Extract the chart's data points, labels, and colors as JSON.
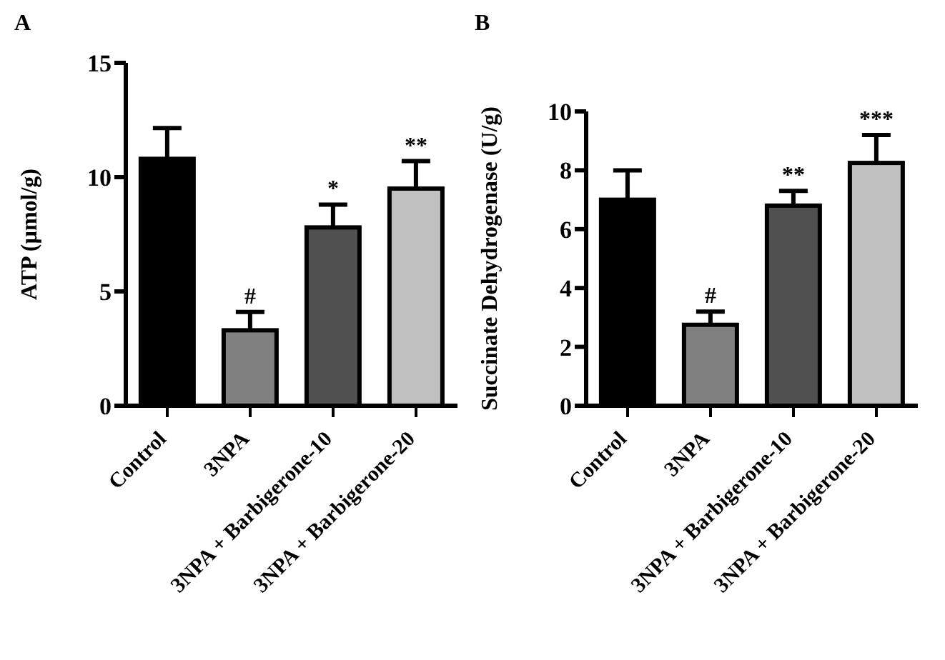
{
  "chart_data": [
    {
      "type": "bar",
      "title": "A",
      "ylabel": "ATP (µmol/g)",
      "categories": [
        "Control",
        "3NPA",
        "3NPA + Barbigerone-10",
        "3NPA + Barbigerone-20"
      ],
      "values": [
        10.8,
        3.3,
        7.8,
        9.5
      ],
      "errors": [
        1.35,
        0.8,
        1.0,
        1.2
      ],
      "colors": [
        "#000000",
        "#808080",
        "#505050",
        "#c0c0c0"
      ],
      "ylim": [
        0,
        15
      ],
      "yticks": [
        0,
        5,
        10,
        15
      ],
      "annotations": [
        {
          "text": "#",
          "x": "3NPA",
          "y": 4.1
        },
        {
          "text": "*",
          "x": "3NPA + Barbigerone-10",
          "y": 8.8
        },
        {
          "text": "**",
          "x": "3NPA + Barbigerone-20",
          "y": 10.7
        }
      ]
    },
    {
      "type": "bar",
      "title": "B",
      "ylabel": "Succinate Dehydrogenase (U/g)",
      "categories": [
        "Control",
        "3NPA",
        "3NPA + Barbigerone-10",
        "3NPA + Barbigerone-20"
      ],
      "values": [
        7.0,
        2.75,
        6.8,
        8.25
      ],
      "errors": [
        1.0,
        0.45,
        0.5,
        0.95
      ],
      "colors": [
        "#000000",
        "#808080",
        "#505050",
        "#c0c0c0"
      ],
      "ylim": [
        0,
        10
      ],
      "yticks": [
        0,
        2,
        4,
        6,
        8,
        10
      ],
      "annotations": [
        {
          "text": "#",
          "x": "3NPA",
          "y": 3.2
        },
        {
          "text": "**",
          "x": "3NPA + Barbigerone-10",
          "y": 7.3
        },
        {
          "text": "***",
          "x": "3NPA + Barbigerone-20",
          "y": 9.2
        }
      ]
    }
  ]
}
